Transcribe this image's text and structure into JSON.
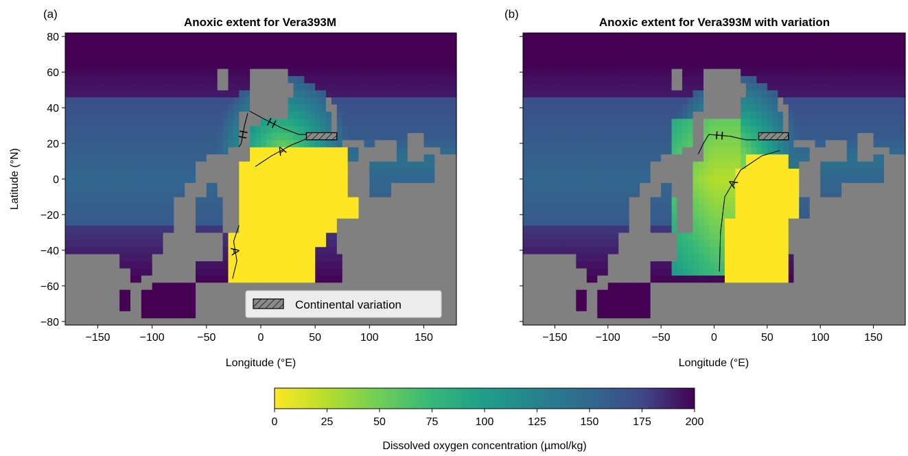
{
  "figure": {
    "colorbar": {
      "label": "Dissolved oxygen concentration (µmol/kg)",
      "ticks": [
        "0",
        "25",
        "50",
        "75",
        "100",
        "125",
        "150",
        "175",
        "200"
      ],
      "range": [
        0,
        200
      ],
      "colormap": "viridis_r"
    },
    "land_color": "#808080"
  },
  "chart_data": [
    {
      "type": "heatmap",
      "panel_tag": "(a)",
      "title": "Anoxic extent for Vera393M",
      "xlabel": "Longitude (°E)",
      "ylabel": "Latitude (°N)",
      "xlim": [
        -180,
        180
      ],
      "ylim": [
        -82,
        82
      ],
      "xticks": [
        "−150",
        "−100",
        "−50",
        "0",
        "50",
        "100",
        "150"
      ],
      "yticks": [
        "80",
        "60",
        "40",
        "20",
        "0",
        "−20",
        "−40",
        "−60",
        "−80"
      ],
      "contours": [
        {
          "label": "H",
          "points": [
            [
              -12,
              37
            ],
            [
              -15,
              30
            ],
            [
              -18,
              20
            ],
            [
              -20,
              18
            ]
          ]
        },
        {
          "label": "H",
          "points": [
            [
              -10,
              38
            ],
            [
              2,
              34
            ],
            [
              18,
              29
            ],
            [
              35,
              25
            ],
            [
              45,
              25
            ]
          ]
        },
        {
          "label": "A",
          "points": [
            [
              -5,
              7
            ],
            [
              10,
              13
            ],
            [
              28,
              19
            ],
            [
              40,
              22
            ],
            [
              46,
              24
            ]
          ]
        },
        {
          "label": "A",
          "points": [
            [
              -20,
              -26
            ],
            [
              -25,
              -35
            ],
            [
              -22,
              -46
            ],
            [
              -26,
              -56
            ]
          ]
        }
      ],
      "legend": {
        "entries": [
          "Continental variation"
        ],
        "position": "lower right"
      },
      "variation_box": {
        "lon": [
          42,
          70
        ],
        "lat": [
          22,
          26
        ]
      }
    },
    {
      "type": "heatmap",
      "panel_tag": "(b)",
      "title": "Anoxic extent for Vera393M with variation",
      "xlabel": "Longitude (°E)",
      "ylabel": "",
      "xlim": [
        -180,
        180
      ],
      "ylim": [
        -82,
        82
      ],
      "xticks": [
        "−150",
        "−100",
        "−50",
        "0",
        "50",
        "100",
        "150"
      ],
      "yticks": [],
      "contours": [
        {
          "label": "H",
          "points": [
            [
              -15,
              14
            ],
            [
              -10,
              20
            ],
            [
              -5,
              25
            ],
            [
              15,
              24
            ],
            [
              30,
              22
            ],
            [
              40,
              22
            ]
          ]
        },
        {
          "label": "A",
          "points": [
            [
              5,
              -52
            ],
            [
              6,
              -30
            ],
            [
              10,
              -10
            ],
            [
              25,
              5
            ],
            [
              45,
              13
            ],
            [
              62,
              16
            ]
          ]
        }
      ],
      "legend": null,
      "variation_box": {
        "lon": [
          42,
          70
        ],
        "lat": [
          22,
          26
        ]
      }
    }
  ]
}
